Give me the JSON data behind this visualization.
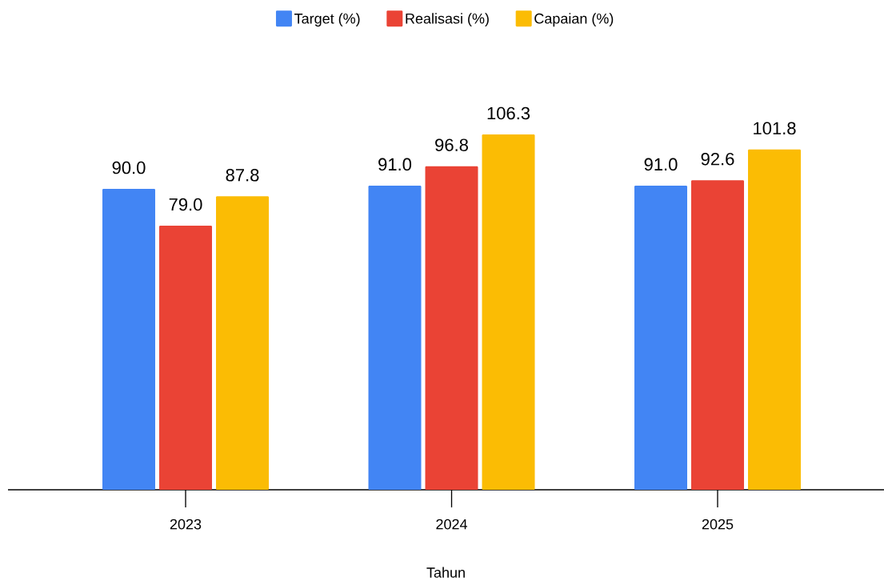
{
  "chart_data": {
    "type": "bar",
    "xlabel": "Tahun",
    "categories": [
      "2023",
      "2024",
      "2025"
    ],
    "series": [
      {
        "name": "Target (%)",
        "color": "#4285f4",
        "values": [
          90.0,
          91.0,
          91.0
        ],
        "value_labels": [
          "90.0",
          "91.0",
          "91.0"
        ]
      },
      {
        "name": "Realisasi (%)",
        "color": "#ea4335",
        "values": [
          79.0,
          96.8,
          92.6
        ],
        "value_labels": [
          "79.0",
          "96.8",
          "92.6"
        ]
      },
      {
        "name": "Capaian (%)",
        "color": "#fbbc04",
        "values": [
          87.8,
          106.3,
          101.8
        ],
        "value_labels": [
          "87.8",
          "106.3",
          "101.8"
        ]
      }
    ],
    "legend": "top"
  }
}
